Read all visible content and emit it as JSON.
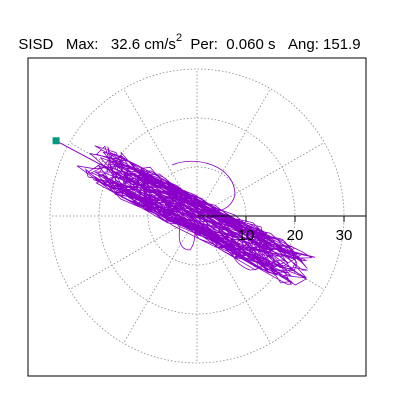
{
  "header": {
    "station": "SISD",
    "max_label": "Max:",
    "max_value": "32.6 cm/s",
    "max_exp": "2",
    "per_label": "Per:",
    "per_value": "0.060 s",
    "ang_label": "Ang:",
    "ang_value": "151.9"
  },
  "plot": {
    "ring_tick_labels": [
      "10",
      "20",
      "30"
    ],
    "ring_values": [
      10,
      20,
      30
    ],
    "spoke_angles_deg": [
      0,
      30,
      60,
      90,
      120,
      150,
      180,
      210,
      240,
      270,
      300,
      330
    ],
    "max_radius_value": 30,
    "trace_color": "#8a00c8",
    "marker_color": "#00997a",
    "grid_color": "#888888",
    "peak_angle_deg": 151.9,
    "peak_amplitude": 32.6
  }
}
